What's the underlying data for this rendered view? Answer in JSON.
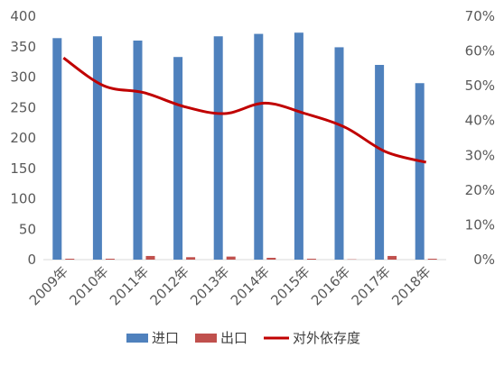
{
  "chart_data": {
    "type": "bar",
    "title": "",
    "xlabel": "",
    "ylabel": "",
    "categories": [
      "2009年",
      "2010年",
      "2011年",
      "2012年",
      "2013年",
      "2014年",
      "2015年",
      "2016年",
      "2017年",
      "2018年"
    ],
    "series": [
      {
        "name": "进口",
        "type": "bar",
        "axis": "left",
        "color": "#4f81bd",
        "values": [
          364,
          367,
          360,
          333,
          367,
          371,
          373,
          349,
          320,
          290
        ]
      },
      {
        "name": "出口",
        "type": "bar",
        "axis": "left",
        "color": "#c0504d",
        "values": [
          1.5,
          1.5,
          6,
          4,
          5,
          3,
          1.5,
          0.5,
          6,
          1.5
        ]
      },
      {
        "name": "对外依存度",
        "type": "line",
        "axis": "right",
        "color": "#c00000",
        "values": [
          58,
          50,
          48,
          44,
          42,
          45,
          42,
          38,
          31,
          28
        ]
      }
    ],
    "ylim": [
      0,
      400
    ],
    "y_ticks": [
      "0",
      "50",
      "100",
      "150",
      "200",
      "250",
      "300",
      "350",
      "400"
    ],
    "y2lim": [
      0,
      70
    ],
    "y2_ticks": [
      "0%",
      "10%",
      "20%",
      "30%",
      "40%",
      "50%",
      "60%",
      "70%"
    ],
    "grid": false,
    "legend_position": "bottom"
  }
}
